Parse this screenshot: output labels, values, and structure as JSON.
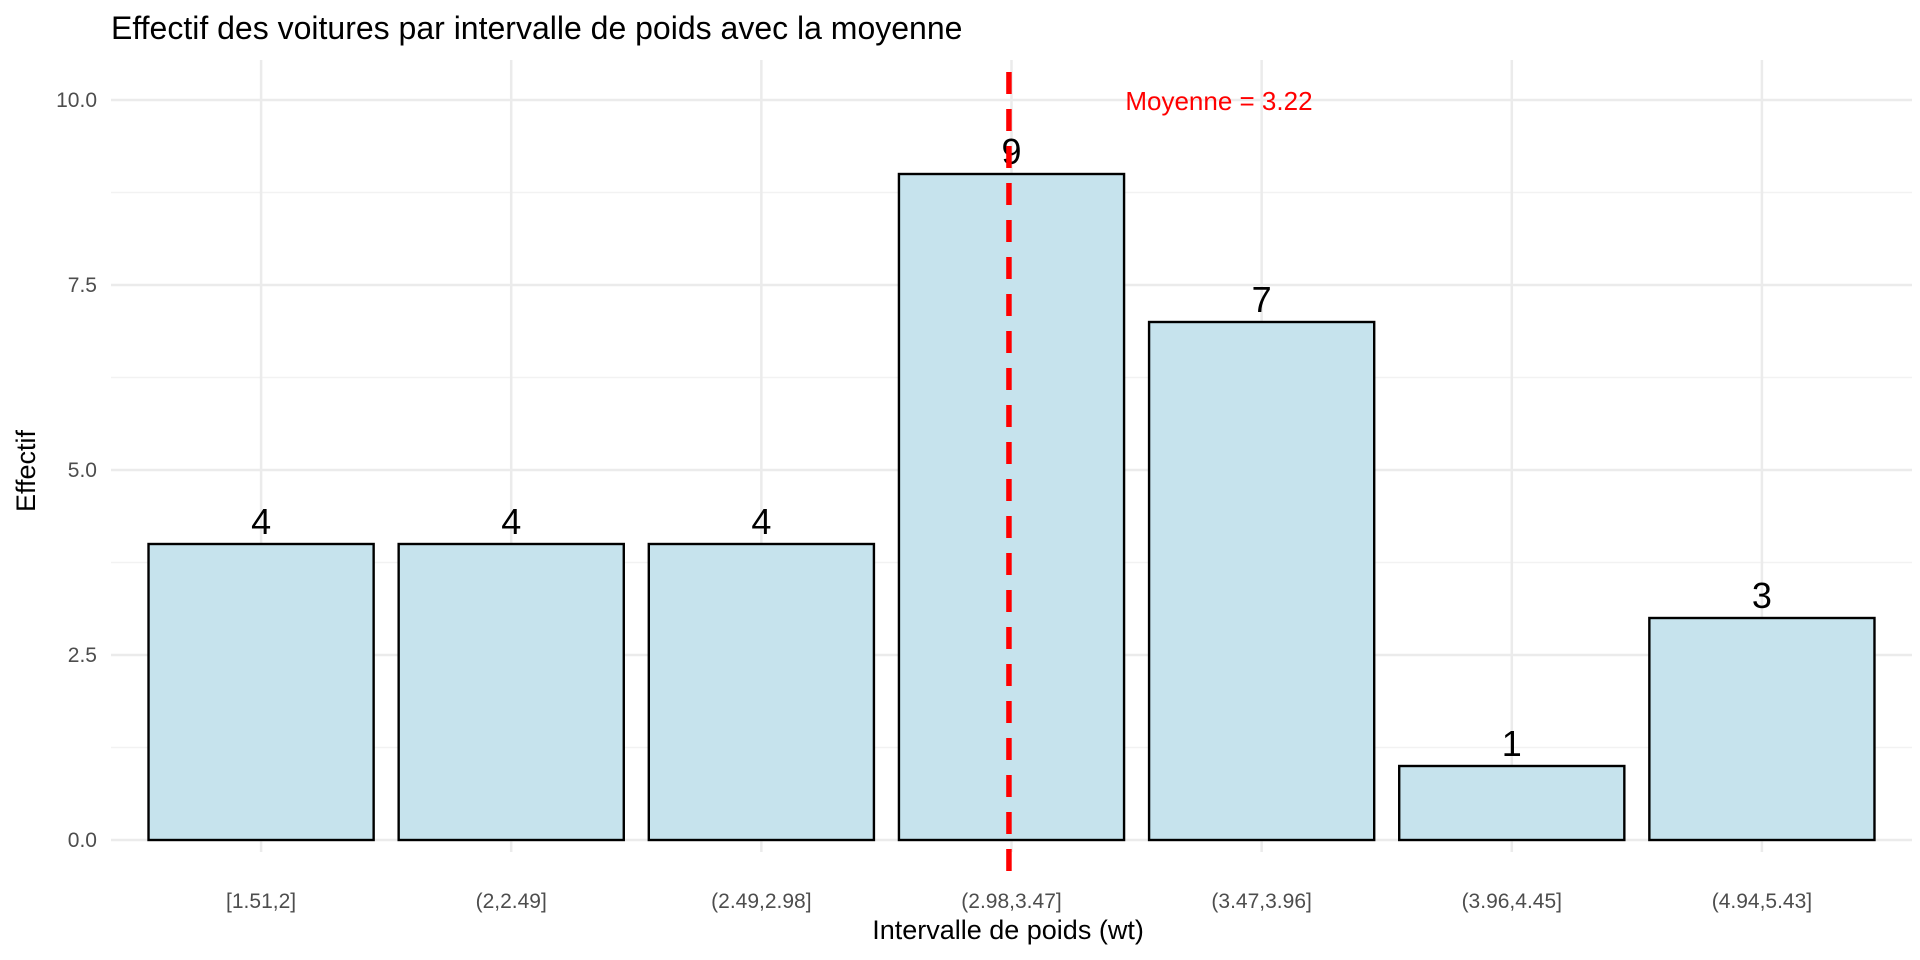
{
  "chart_data": {
    "type": "bar",
    "title": "Effectif des voitures par intervalle de poids avec la moyenne",
    "xlabel": "Intervalle de poids (wt)",
    "ylabel": "Effectif",
    "categories": [
      "[1.51,2]",
      "(2,2.49]",
      "(2.49,2.98]",
      "(2.98,3.47]",
      "(3.47,3.96]",
      "(3.96,4.45]",
      "(4.94,5.43]"
    ],
    "values": [
      4,
      4,
      4,
      9,
      7,
      1,
      3
    ],
    "data_labels": [
      "4",
      "4",
      "4",
      "9",
      "7",
      "1",
      "3"
    ],
    "ylim": [
      0,
      10
    ],
    "yticks": [
      0,
      2.5,
      5,
      7.5,
      10
    ],
    "ytick_labels": [
      "0.0",
      "2.5",
      "5.0",
      "7.5",
      "10.0"
    ],
    "grid": true,
    "bar_fill": "#c6e3ed",
    "bar_stroke": "#000000",
    "mean_line": {
      "value": 3.22,
      "label": "Moyenne = 3.22",
      "color": "#ff0000",
      "style": "dashed"
    }
  }
}
